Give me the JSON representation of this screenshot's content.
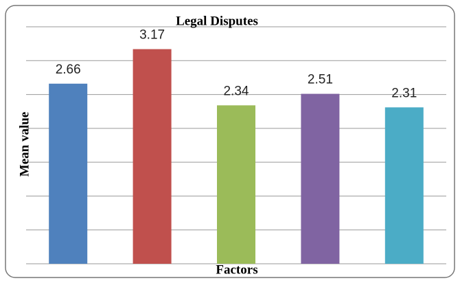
{
  "chart_data": {
    "type": "bar",
    "title": "Legal Disputes",
    "x_label": "Factors",
    "y_label": "Mean value",
    "categories": [
      null,
      null,
      null,
      null,
      null
    ],
    "values": [
      2.66,
      3.17,
      2.34,
      2.51,
      2.31
    ],
    "colors": [
      "#4f81bd",
      "#c0504d",
      "#9bbb59",
      "#8064a2",
      "#4bacc6"
    ],
    "ylim": [
      0,
      3.5
    ],
    "yticks": [
      0,
      0.5,
      1,
      1.5,
      2,
      2.5,
      3,
      3.5
    ],
    "grid": true
  }
}
